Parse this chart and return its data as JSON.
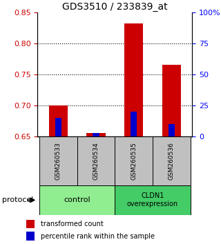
{
  "title": "GDS3510 / 233839_at",
  "samples": [
    "GSM260533",
    "GSM260534",
    "GSM260535",
    "GSM260536"
  ],
  "red_values": [
    0.7,
    0.656,
    0.832,
    0.765
  ],
  "blue_percentiles": [
    15,
    3,
    20,
    10
  ],
  "ylim_left": [
    0.65,
    0.85
  ],
  "ylim_right": [
    0,
    100
  ],
  "yticks_left": [
    0.65,
    0.7,
    0.75,
    0.8,
    0.85
  ],
  "yticks_right": [
    0,
    25,
    50,
    75,
    100
  ],
  "ytick_labels_right": [
    "0",
    "25",
    "50",
    "75",
    "100%"
  ],
  "dotted_lines": [
    0.7,
    0.75,
    0.8
  ],
  "red_color": "#CC0000",
  "blue_color": "#0000CC",
  "control_color": "#90EE90",
  "overexp_color": "#44CC66",
  "sample_bg_color": "#C0C0C0",
  "legend_red": "transformed count",
  "legend_blue": "percentile rank within the sample",
  "base_value": 0.65
}
